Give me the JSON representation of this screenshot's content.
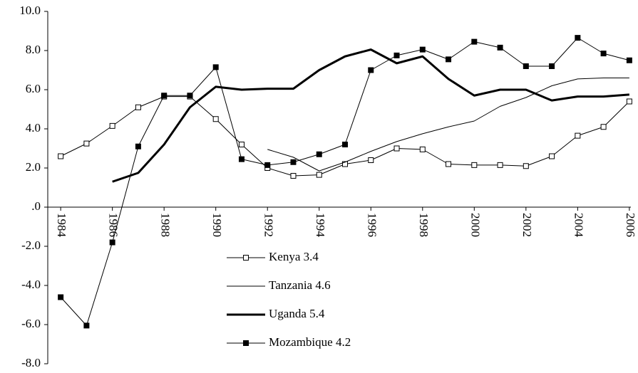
{
  "chart_data": {
    "type": "line",
    "x": [
      1984,
      1985,
      1986,
      1987,
      1988,
      1989,
      1990,
      1991,
      1992,
      1993,
      1994,
      1995,
      1996,
      1997,
      1998,
      1999,
      2000,
      2001,
      2002,
      2003,
      2004,
      2005,
      2006
    ],
    "xlim": [
      1983.5,
      2006.5
    ],
    "xticks": [
      1984,
      1986,
      1988,
      1990,
      1992,
      1994,
      1996,
      1998,
      2000,
      2002,
      2004,
      2006
    ],
    "ylim": [
      -8,
      10
    ],
    "yticks": [
      {
        "value": 10,
        "label": "10.0"
      },
      {
        "value": 8,
        "label": "8.0"
      },
      {
        "value": 6,
        "label": "6.0"
      },
      {
        "value": 4,
        "label": "4.0"
      },
      {
        "value": 2,
        "label": "2.0"
      },
      {
        "value": 0,
        "label": ".0"
      },
      {
        "value": -2,
        "label": "-2.0"
      },
      {
        "value": -4,
        "label": "-4.0"
      },
      {
        "value": -6,
        "label": "-6.0"
      },
      {
        "value": -8,
        "label": "-8.0"
      }
    ],
    "series": [
      {
        "name": "Kenya 3.4",
        "color": "#000000",
        "marker": "open-square",
        "line_width": 1,
        "values": [
          2.6,
          3.25,
          4.15,
          5.1,
          5.65,
          5.65,
          4.5,
          3.2,
          2.0,
          1.6,
          1.65,
          2.2,
          2.4,
          3.0,
          2.95,
          2.2,
          2.15,
          2.15,
          2.1,
          2.6,
          3.65,
          4.1,
          5.4
        ]
      },
      {
        "name": "Tanzania 4.6",
        "color": "#000000",
        "marker": "none",
        "line_width": 1,
        "values": [
          null,
          null,
          null,
          null,
          null,
          null,
          null,
          null,
          2.95,
          2.55,
          1.85,
          2.3,
          2.85,
          3.35,
          3.75,
          4.1,
          4.4,
          5.15,
          5.6,
          6.2,
          6.55,
          6.6,
          6.6
        ]
      },
      {
        "name": "Uganda 5.4",
        "color": "#000000",
        "marker": "none",
        "line_width": 3,
        "values": [
          null,
          null,
          1.3,
          1.75,
          3.2,
          5.1,
          6.15,
          6.0,
          6.05,
          6.05,
          7.0,
          7.7,
          8.05,
          7.35,
          7.7,
          6.55,
          5.7,
          6.0,
          6.0,
          5.45,
          5.65,
          5.65,
          5.75
        ]
      },
      {
        "name": "Mozambique 4.2",
        "color": "#000000",
        "marker": "filled-square",
        "line_width": 1,
        "values": [
          -4.6,
          -6.05,
          -1.8,
          3.1,
          5.7,
          5.7,
          7.15,
          2.45,
          2.15,
          2.3,
          2.7,
          3.2,
          7.0,
          7.75,
          8.05,
          7.55,
          8.45,
          8.15,
          7.2,
          7.2,
          8.65,
          7.85,
          7.5
        ]
      }
    ]
  }
}
